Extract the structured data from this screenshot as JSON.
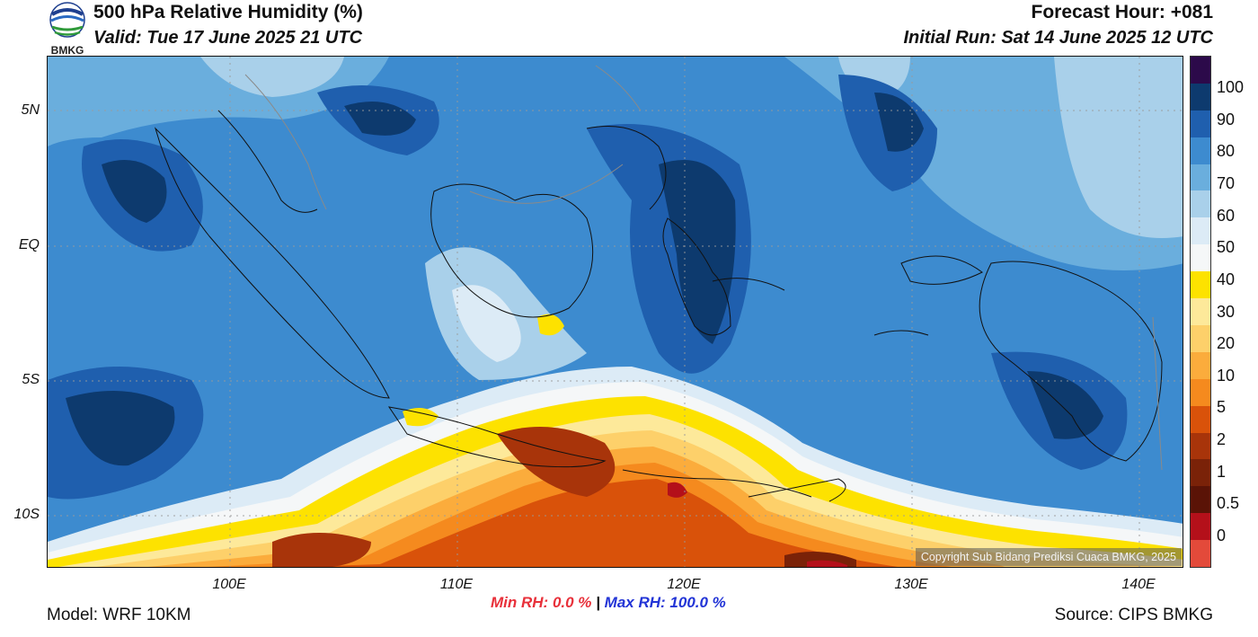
{
  "header": {
    "logo_text": "BMKG",
    "title": "500 hPa Relative Humidity (%)",
    "valid": "Valid: Tue 17 June 2025 21 UTC",
    "forecast_hour": "Forecast Hour: +081",
    "initial_run": "Initial Run: Sat 14 June 2025 12 UTC"
  },
  "map": {
    "lat_labels": [
      "5N",
      "EQ",
      "5S",
      "10S"
    ],
    "lon_labels": [
      "100E",
      "110E",
      "120E",
      "130E",
      "140E"
    ],
    "copyright": "Copyright Sub Bidang Prediksi Cuaca BMKG, 2025"
  },
  "colorbar": {
    "labels": [
      "100",
      "90",
      "80",
      "70",
      "60",
      "50",
      "40",
      "30",
      "20",
      "10",
      "5",
      "2",
      "1",
      "0.5",
      "0"
    ],
    "colors": [
      "#2c0a4a",
      "#0d3a6e",
      "#1f5fae",
      "#3d8bcf",
      "#6aaedd",
      "#a9d0ea",
      "#dcebf6",
      "#f5f7f8",
      "#fde200",
      "#fde99a",
      "#fdd06a",
      "#fbac3c",
      "#f58a1e",
      "#d9520a",
      "#a8340a",
      "#7a2208",
      "#5a1306",
      "#b4101a",
      "#e34a3a"
    ]
  },
  "stats": {
    "min_label": "Min RH:",
    "min_value": "0.0 %",
    "separator": "|",
    "max_label": "Max RH:",
    "max_value": "100.0 %",
    "min_color": "#e8303a",
    "max_color": "#2234d6"
  },
  "footer": {
    "model": "Model: WRF 10KM",
    "source": "Source: CIPS BMKG"
  }
}
